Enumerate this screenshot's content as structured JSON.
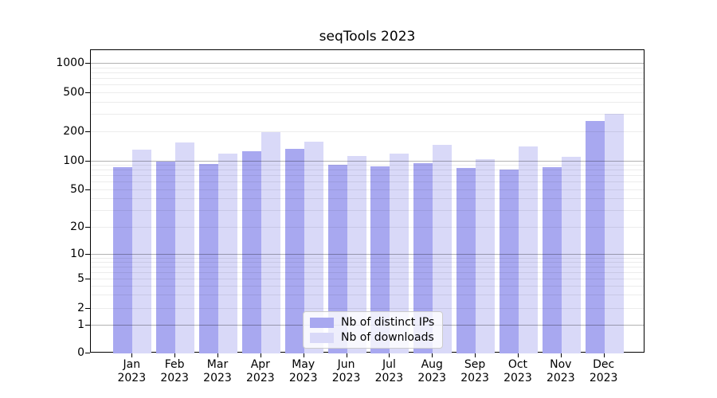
{
  "chart_data": {
    "type": "bar",
    "title": "seqTools 2023",
    "categories": [
      "Jan",
      "Feb",
      "Mar",
      "Apr",
      "May",
      "Jun",
      "Jul",
      "Aug",
      "Sep",
      "Oct",
      "Nov",
      "Dec"
    ],
    "category_year_label": "2023",
    "series": [
      {
        "name": "Nb of distinct IPs",
        "color": "#a8a8f0",
        "values": [
          87,
          100,
          93,
          128,
          135,
          91,
          88,
          95,
          85,
          82,
          87,
          258
        ]
      },
      {
        "name": "Nb of downloads",
        "color": "#d9d9f8",
        "values": [
          132,
          155,
          120,
          200,
          160,
          114,
          120,
          147,
          104,
          143,
          111,
          305
        ]
      }
    ],
    "yscale": "symlog",
    "yticks": [
      0,
      1,
      2,
      5,
      10,
      20,
      50,
      100,
      200,
      500,
      1000
    ],
    "ylim": [
      0,
      1400
    ],
    "xlabel": "",
    "ylabel": "",
    "grid": true,
    "legend_position": "lower center"
  },
  "colors": {
    "axis": "#000000",
    "major_grid": "#b3b3b3",
    "minor_grid": "#ebebeb",
    "background": "#ffffff",
    "legend_border": "#cccccc"
  }
}
